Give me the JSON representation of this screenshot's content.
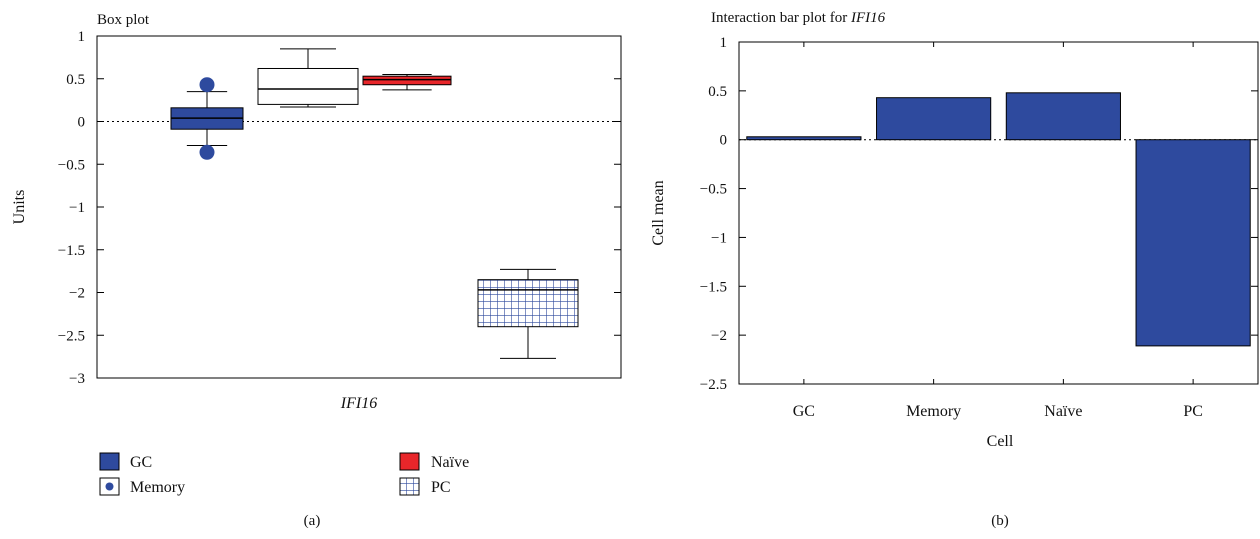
{
  "chart_data": [
    {
      "type": "box",
      "title": "Box plot",
      "ylabel": "Units",
      "xlabel": "IFI16",
      "ylim": [
        -3,
        1
      ],
      "yticks": [
        1,
        0.5,
        0,
        -0.5,
        -1,
        -1.5,
        -2,
        -2.5,
        -3
      ],
      "ytick_labels": [
        "1",
        "0.5",
        "0",
        "−0.5",
        "−1",
        "−1.5",
        "−2",
        "−2.5",
        "−3"
      ],
      "reference_line": 0,
      "series": [
        {
          "name": "GC",
          "whisker_low": -0.28,
          "q1": -0.09,
          "median": 0.04,
          "q3": 0.16,
          "whisker_high": 0.35,
          "outliers": [
            0.43,
            -0.36
          ],
          "color": "#2e4a9e",
          "fill": "solid"
        },
        {
          "name": "Memory",
          "whisker_low": 0.17,
          "q1": 0.2,
          "median": 0.38,
          "q3": 0.62,
          "whisker_high": 0.85,
          "outliers": [],
          "color": "#ffffff",
          "fill": "solid"
        },
        {
          "name": "Naïve",
          "whisker_low": 0.37,
          "q1": 0.43,
          "median": 0.49,
          "q3": 0.53,
          "whisker_high": 0.55,
          "outliers": [],
          "color": "#e8262a",
          "fill": "solid"
        },
        {
          "name": "PC",
          "whisker_low": -2.77,
          "q1": -2.4,
          "median": -1.97,
          "q3": -1.85,
          "whisker_high": -1.73,
          "outliers": [],
          "color": "#2e4a9e",
          "fill": "grid"
        }
      ],
      "legend": {
        "placement": "bottom",
        "entries": [
          "GC",
          "Memory",
          "Naïve",
          "PC"
        ]
      },
      "panel_label": "(a)"
    },
    {
      "type": "bar",
      "title_prefix": "Interaction bar plot for ",
      "title_gene": "IFI16",
      "xlabel": "Cell",
      "ylabel": "Cell mean",
      "ylim": [
        -2.5,
        1
      ],
      "yticks": [
        1,
        0.5,
        0,
        -0.5,
        -1,
        -1.5,
        -2,
        -2.5
      ],
      "ytick_labels": [
        "1",
        "0.5",
        "0",
        "−0.5",
        "−1",
        "−1.5",
        "−2",
        "−2.5"
      ],
      "categories": [
        "GC",
        "Memory",
        "Naïve",
        "PC"
      ],
      "values": [
        0.03,
        0.43,
        0.48,
        -2.11
      ],
      "bar_color": "#2e4a9e",
      "reference_line": 0,
      "panel_label": "(b)"
    }
  ]
}
